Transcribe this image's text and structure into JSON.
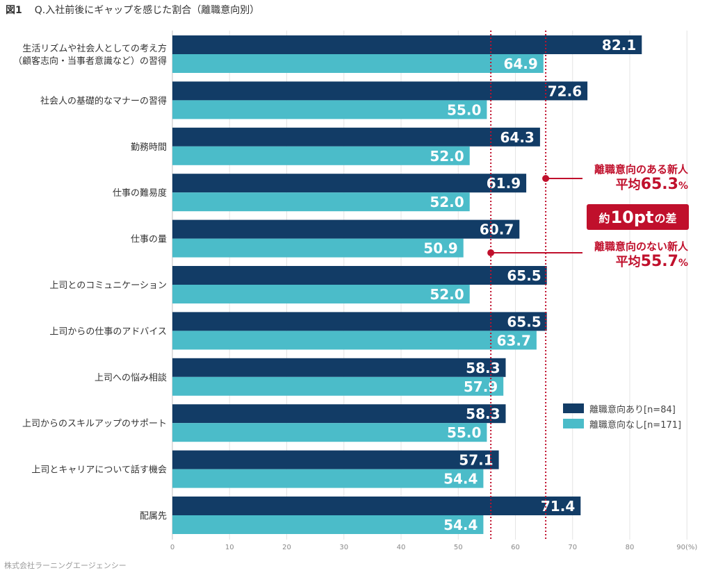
{
  "title": {
    "figure": "図1",
    "text": "Q.入社前後にギャップを感じた割合（離職意向別）"
  },
  "source": "株式会社ラーニングエージェンシー",
  "colors": {
    "with_intent": "#123c66",
    "without_intent": "#4bbcc9",
    "accent": "#c0102c"
  },
  "chart_data": {
    "type": "bar",
    "orientation": "horizontal",
    "title": "Q.入社前後にギャップを感じた割合（離職意向別）",
    "xlabel": "(%)",
    "xlim": [
      0,
      90
    ],
    "xticks": [
      0,
      10,
      20,
      30,
      40,
      50,
      60,
      70,
      80,
      90
    ],
    "xtick_labels": [
      "0",
      "10",
      "20",
      "30",
      "40",
      "50",
      "60",
      "70",
      "80",
      "90(%)"
    ],
    "grid": true,
    "categories": [
      [
        "生活リズムや社会人としての考え方",
        "（顧客志向・当事者意識など）の習得"
      ],
      [
        "社会人の基礎的なマナーの習得"
      ],
      [
        "勤務時間"
      ],
      [
        "仕事の難易度"
      ],
      [
        "仕事の量"
      ],
      [
        "上司とのコミュニケーション"
      ],
      [
        "上司からの仕事のアドバイス"
      ],
      [
        "上司への悩み相談"
      ],
      [
        "上司からのスキルアップのサポート"
      ],
      [
        "上司とキャリアについて話す機会"
      ],
      [
        "配属先"
      ]
    ],
    "series": [
      {
        "name": "離職意向あり[n=84]",
        "values": [
          82.1,
          72.6,
          64.3,
          61.9,
          60.7,
          65.5,
          65.5,
          58.3,
          58.3,
          57.1,
          71.4
        ]
      },
      {
        "name": "離職意向なし[n=171]",
        "values": [
          64.9,
          55.0,
          52.0,
          52.0,
          50.9,
          52.0,
          63.7,
          57.9,
          55.0,
          54.4,
          54.4
        ]
      }
    ],
    "value_labels": [
      [
        "82.1",
        "72.6",
        "64.3",
        "61.9",
        "60.7",
        "65.5",
        "65.5",
        "58.3",
        "58.3",
        "57.1",
        "71.4"
      ],
      [
        "64.9",
        "55.0",
        "52.0",
        "52.0",
        "50.9",
        "52.0",
        "63.7",
        "57.9",
        "55.0",
        "54.4",
        "54.4"
      ]
    ],
    "reference_lines": [
      {
        "name": "離職意向のある新人 平均",
        "value": 65.3
      },
      {
        "name": "離職意向のない新人 平均",
        "value": 55.7
      }
    ],
    "legend_position": "bottom-right"
  },
  "annotations": {
    "avg_high_label": "離職意向のある新人",
    "avg_high_prefix": "平均",
    "avg_high_value": "65.3",
    "avg_low_label": "離職意向のない新人",
    "avg_low_prefix": "平均",
    "avg_low_value": "55.7",
    "percent_sign": "%",
    "diff_prefix": "約",
    "diff_value": "10pt",
    "diff_suffix": "の差"
  },
  "legend": [
    {
      "label": "離職意向あり[n=84]"
    },
    {
      "label": "離職意向なし[n=171]"
    }
  ]
}
